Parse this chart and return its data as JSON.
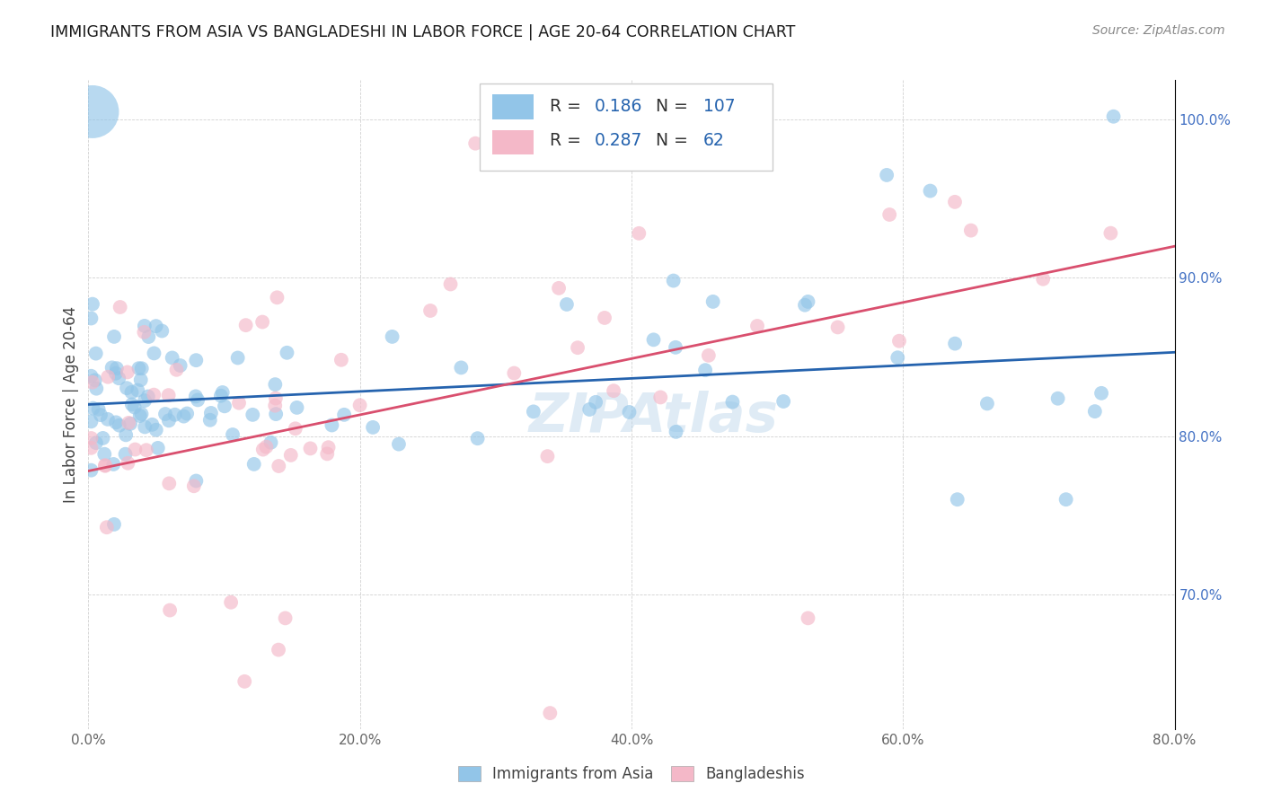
{
  "title": "IMMIGRANTS FROM ASIA VS BANGLADESHI IN LABOR FORCE | AGE 20-64 CORRELATION CHART",
  "source": "Source: ZipAtlas.com",
  "ylabel": "In Labor Force | Age 20-64",
  "xlim": [
    0.0,
    0.8
  ],
  "ylim": [
    0.615,
    1.025
  ],
  "ytick_labels": [
    "70.0%",
    "80.0%",
    "90.0%",
    "100.0%"
  ],
  "ytick_values": [
    0.7,
    0.8,
    0.9,
    1.0
  ],
  "xtick_labels": [
    "0.0%",
    "20.0%",
    "40.0%",
    "60.0%",
    "80.0%"
  ],
  "xtick_values": [
    0.0,
    0.2,
    0.4,
    0.6,
    0.8
  ],
  "blue_color": "#92c5e8",
  "pink_color": "#f4b8c8",
  "blue_fill": "#92c5e8",
  "pink_fill": "#f4b8c8",
  "blue_line_color": "#2563ae",
  "pink_line_color": "#d94f6e",
  "blue_R": 0.186,
  "blue_N": 107,
  "pink_R": 0.287,
  "pink_N": 62,
  "legend_label_blue": "Immigrants from Asia",
  "legend_label_pink": "Bangladeshis",
  "watermark": "ZIPAtlas",
  "rvalue_color": "#2563ae",
  "title_color": "#1a1a1a",
  "source_color": "#888888",
  "ylabel_color": "#444444",
  "tick_color": "#666666",
  "grid_color": "#cccccc",
  "right_tick_color": "#4472c4"
}
